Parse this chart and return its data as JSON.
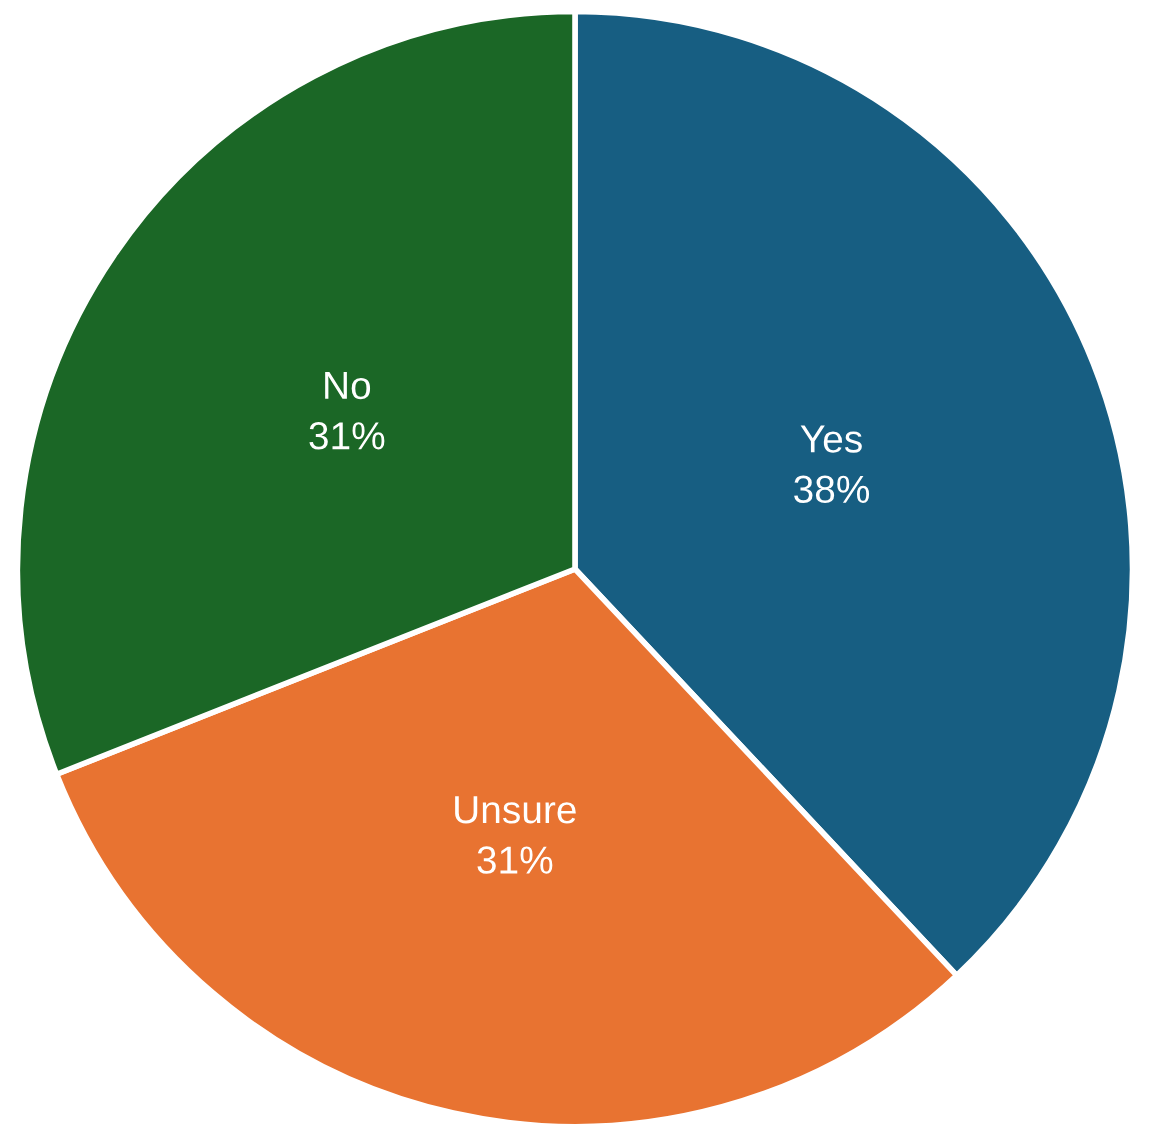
{
  "chart_data": {
    "type": "pie",
    "categories": [
      "Yes",
      "Unsure",
      "No"
    ],
    "values": [
      38,
      31,
      31
    ],
    "value_labels": [
      "38%",
      "31%",
      "31%"
    ],
    "colors": [
      "#175e82",
      "#e87331",
      "#1b6726"
    ],
    "legend": false
  }
}
